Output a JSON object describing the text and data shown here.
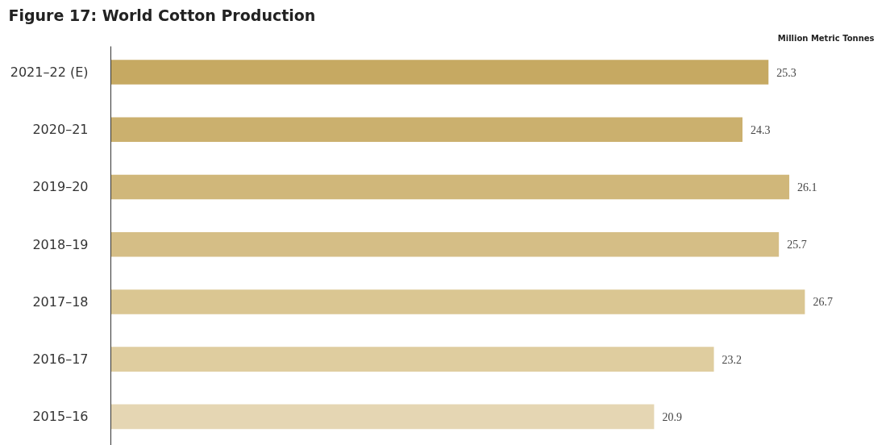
{
  "chart_data": {
    "type": "bar",
    "orientation": "horizontal",
    "title": "Figure 17: World Cotton Production",
    "annotations": [
      "Million Metric Tonnes"
    ],
    "categories": [
      "2021–22 (E)",
      "2020–21",
      "2019–20",
      "2018–19",
      "2017–18",
      "2016–17",
      "2015–16"
    ],
    "values": [
      25.3,
      24.3,
      26.1,
      25.7,
      26.7,
      23.2,
      20.9
    ],
    "colors": [
      "#c6a962",
      "#cbb06e",
      "#d0b77a",
      "#d5be86",
      "#dac692",
      "#dfcd9f",
      "#e5d6b3"
    ],
    "data_labels": true,
    "grid": false
  }
}
